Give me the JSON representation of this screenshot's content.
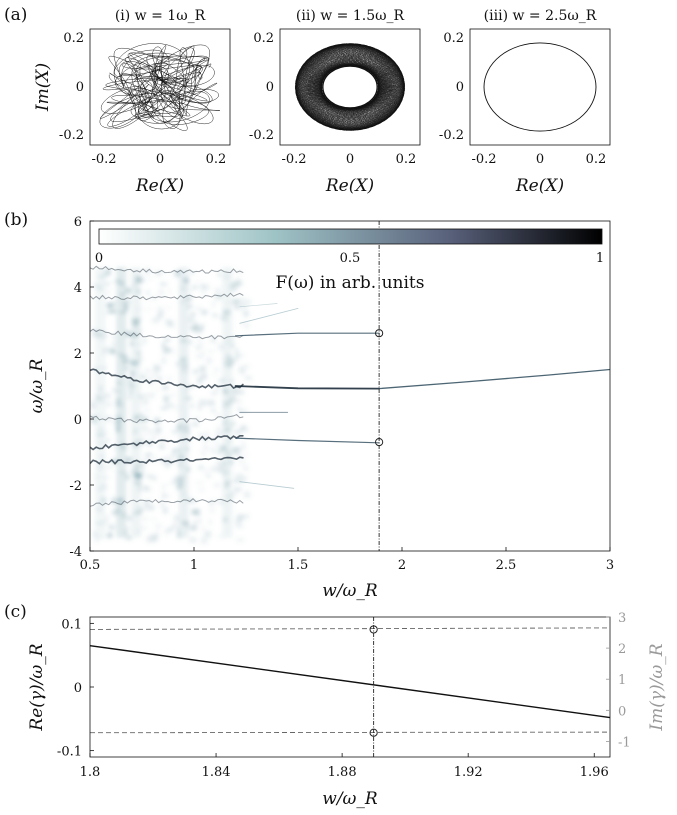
{
  "panels": {
    "a": {
      "label": "(a)"
    },
    "b": {
      "label": "(b)"
    },
    "c": {
      "label": "(c)"
    }
  },
  "chart_data": [
    {
      "id": "a-i",
      "type": "scatter",
      "title": "(i) w = 1ω_R",
      "xlabel": "Re(X)",
      "ylabel": "Im(X)",
      "xlim": [
        -0.25,
        0.25
      ],
      "ylim": [
        -0.25,
        0.25
      ],
      "xticks": [
        "-0.2",
        "0",
        "0.2"
      ],
      "yticks": [
        "0.2",
        "0",
        "-0.2"
      ],
      "trajectory": "irregular tangled orbit filling |X| up to ~0.2"
    },
    {
      "id": "a-ii",
      "type": "scatter",
      "title": "(ii) w = 1.5ω_R",
      "xlabel": "Re(X)",
      "ylabel": "",
      "xlim": [
        -0.25,
        0.25
      ],
      "ylim": [
        -0.25,
        0.25
      ],
      "xticks": [
        "-0.2",
        "0",
        "0.2"
      ],
      "yticks": [
        "0.2",
        "0",
        "-0.2"
      ],
      "trajectory": "quasi-periodic annulus between radius ~0.1 and ~0.2"
    },
    {
      "id": "a-iii",
      "type": "scatter",
      "title": "(iii) w = 2.5ω_R",
      "xlabel": "Re(X)",
      "ylabel": "",
      "xlim": [
        -0.25,
        0.25
      ],
      "ylim": [
        -0.25,
        0.25
      ],
      "xticks": [
        "-0.2",
        "0",
        "0.2"
      ],
      "yticks": [
        "0.2",
        "0",
        "-0.2"
      ],
      "trajectory": "single closed circle of radius ~0.19"
    },
    {
      "id": "b",
      "type": "heatmap",
      "xlabel": "w/ω_R",
      "ylabel": "ω/ω_R",
      "xlim": [
        0.5,
        3
      ],
      "ylim": [
        -4,
        6
      ],
      "xticks": [
        "0.5",
        "1",
        "1.5",
        "2",
        "2.5",
        "3"
      ],
      "yticks": [
        "6",
        "4",
        "2",
        "0",
        "-2",
        "-4"
      ],
      "colorbar": {
        "label": "F(ω) in arb. units",
        "ticks": [
          "0",
          "0.5",
          "1"
        ],
        "colors": [
          "#ffffff",
          "#9fc4c6",
          "#58607a",
          "#000000"
        ]
      },
      "vline_x": 1.89,
      "markers": [
        {
          "x": 1.89,
          "y": 2.6
        },
        {
          "x": 1.89,
          "y": -0.7
        }
      ],
      "ridges": [
        {
          "x": [
            0.5,
            1.89,
            3.0
          ],
          "y": [
            1.45,
            0.92,
            1.5
          ]
        },
        {
          "x": [
            0.5,
            1.89
          ],
          "y": [
            2.65,
            2.6
          ]
        },
        {
          "x": [
            1.25,
            1.89
          ],
          "y": [
            -0.6,
            -0.7
          ]
        }
      ]
    },
    {
      "id": "c",
      "type": "line",
      "xlabel": "w/ω_R",
      "ylabel": "Re(γ)/ω_R",
      "ylabel_right": "Im(γ)/ω_R",
      "xlim": [
        1.8,
        1.965
      ],
      "ylim": [
        -0.11,
        0.11
      ],
      "ylim_right": [
        -1.5,
        3
      ],
      "xticks": [
        "1.8",
        "1.84",
        "1.88",
        "1.92",
        "1.96"
      ],
      "yticks": [
        "0.1",
        "0",
        "-0.1"
      ],
      "yticks_right": [
        "3",
        "2",
        "1",
        "0",
        "-1"
      ],
      "series": [
        {
          "axis": "left",
          "style": "solid",
          "x": [
            1.8,
            1.965
          ],
          "y": [
            0.065,
            -0.048
          ]
        },
        {
          "axis": "right",
          "style": "dashed",
          "x": [
            1.8,
            1.965
          ],
          "y": [
            2.6,
            2.65
          ]
        },
        {
          "axis": "right",
          "style": "dashed",
          "x": [
            1.8,
            1.965
          ],
          "y": [
            -0.72,
            -0.7
          ]
        }
      ],
      "vline_x": 1.89,
      "markers": [
        {
          "x": 1.89,
          "y_right": 2.6
        },
        {
          "x": 1.89,
          "y_right": -0.72
        }
      ]
    }
  ]
}
